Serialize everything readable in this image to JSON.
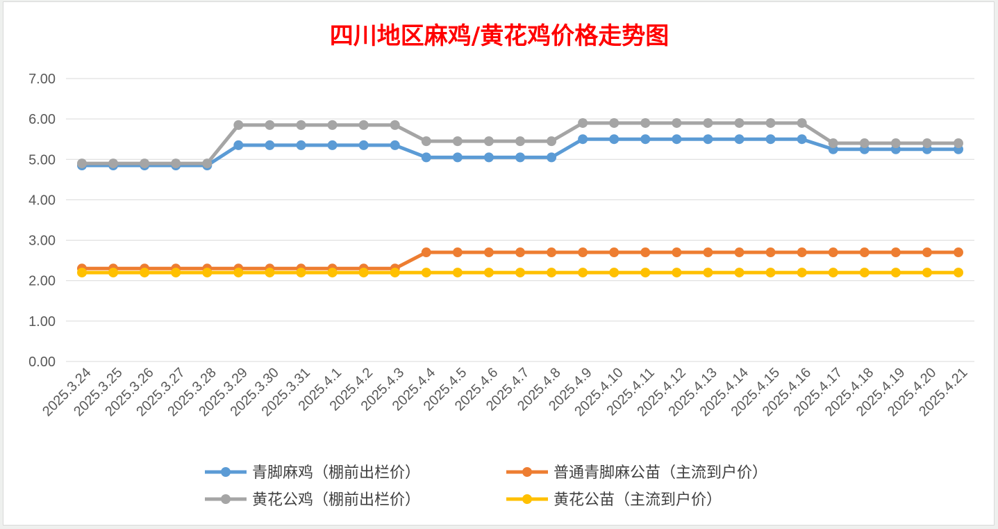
{
  "colors": {
    "title": "#ff0000",
    "grid": "#d9d9d9",
    "tick": "#595959",
    "legend_text": "#404040"
  },
  "chart_data": {
    "type": "line",
    "title": "四川地区麻鸡/黄花鸡价格走势图",
    "xlabel": "",
    "ylabel": "",
    "ylim": [
      0,
      7
    ],
    "yticks": [
      "0.00",
      "1.00",
      "2.00",
      "3.00",
      "4.00",
      "5.00",
      "6.00",
      "7.00"
    ],
    "grid": true,
    "legend_position": "bottom",
    "categories": [
      "2025.3.24",
      "2025.3.25",
      "2025.3.26",
      "2025.3.27",
      "2025.3.28",
      "2025.3.29",
      "2025.3.30",
      "2025.3.31",
      "2025.4.1",
      "2025.4.2",
      "2025.4.3",
      "2025.4.4",
      "2025.4.5",
      "2025.4.6",
      "2025.4.7",
      "2025.4.8",
      "2025.4.9",
      "2025.4.10",
      "2025.4.11",
      "2025.4.12",
      "2025.4.13",
      "2025.4.14",
      "2025.4.15",
      "2025.4.16",
      "2025.4.17",
      "2025.4.18",
      "2025.4.19",
      "2025.4.20",
      "2025.4.21"
    ],
    "series": [
      {
        "name": "青脚麻鸡（棚前出栏价）",
        "color": "#5b9bd5",
        "values": [
          4.85,
          4.85,
          4.85,
          4.85,
          4.85,
          5.35,
          5.35,
          5.35,
          5.35,
          5.35,
          5.35,
          5.05,
          5.05,
          5.05,
          5.05,
          5.05,
          5.5,
          5.5,
          5.5,
          5.5,
          5.5,
          5.5,
          5.5,
          5.5,
          5.25,
          5.25,
          5.25,
          5.25,
          5.25
        ]
      },
      {
        "name": "普通青脚麻公苗（主流到户价）",
        "color": "#ed7d31",
        "values": [
          2.3,
          2.3,
          2.3,
          2.3,
          2.3,
          2.3,
          2.3,
          2.3,
          2.3,
          2.3,
          2.3,
          2.7,
          2.7,
          2.7,
          2.7,
          2.7,
          2.7,
          2.7,
          2.7,
          2.7,
          2.7,
          2.7,
          2.7,
          2.7,
          2.7,
          2.7,
          2.7,
          2.7,
          2.7
        ]
      },
      {
        "name": "黄花公鸡（棚前出栏价）",
        "color": "#a5a5a5",
        "values": [
          4.9,
          4.9,
          4.9,
          4.9,
          4.9,
          5.85,
          5.85,
          5.85,
          5.85,
          5.85,
          5.85,
          5.45,
          5.45,
          5.45,
          5.45,
          5.45,
          5.9,
          5.9,
          5.9,
          5.9,
          5.9,
          5.9,
          5.9,
          5.9,
          5.4,
          5.4,
          5.4,
          5.4,
          5.4
        ]
      },
      {
        "name": "黄花公苗（主流到户价）",
        "color": "#ffc000",
        "values": [
          2.2,
          2.2,
          2.2,
          2.2,
          2.2,
          2.2,
          2.2,
          2.2,
          2.2,
          2.2,
          2.2,
          2.2,
          2.2,
          2.2,
          2.2,
          2.2,
          2.2,
          2.2,
          2.2,
          2.2,
          2.2,
          2.2,
          2.2,
          2.2,
          2.2,
          2.2,
          2.2,
          2.2,
          2.2
        ]
      }
    ]
  }
}
